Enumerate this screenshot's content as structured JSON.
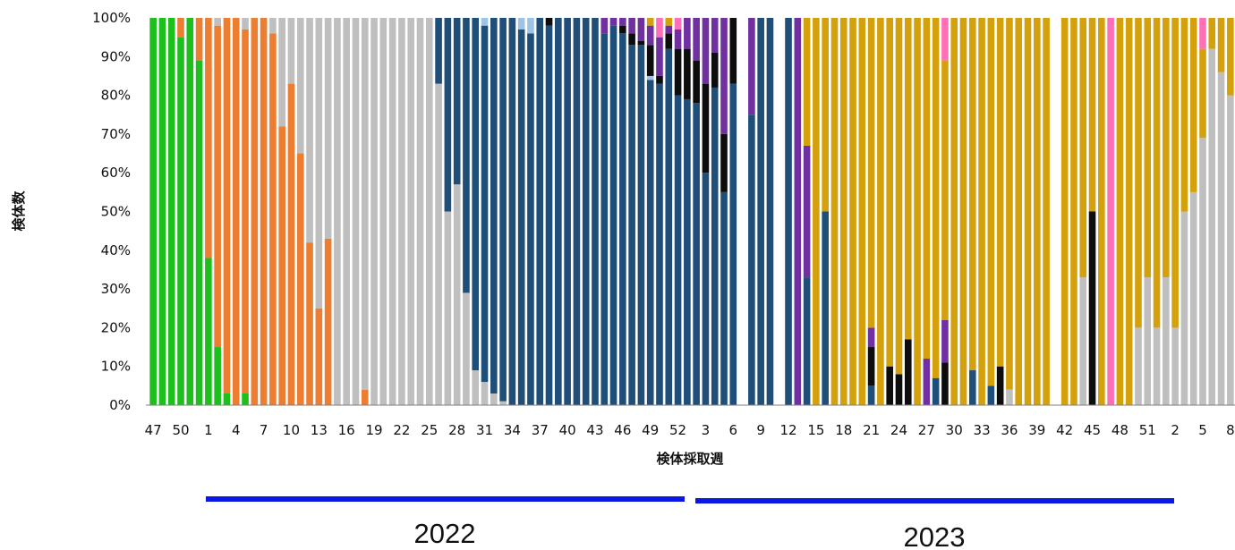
{
  "chart_data": {
    "type": "bar",
    "stacked": true,
    "normalized_percent": true,
    "xlabel": "検体採取週",
    "ylabel": "検体数",
    "ylim": [
      0,
      100
    ],
    "y_ticks": [
      "0%",
      "10%",
      "20%",
      "30%",
      "40%",
      "50%",
      "60%",
      "70%",
      "80%",
      "90%",
      "100%"
    ],
    "grid": false,
    "legend": "none",
    "x_tick_labels": [
      "47",
      "50",
      "1",
      "4",
      "7",
      "10",
      "13",
      "16",
      "19",
      "22",
      "25",
      "28",
      "31",
      "34",
      "37",
      "40",
      "43",
      "46",
      "49",
      "52",
      "3",
      "6",
      "9",
      "12",
      "15",
      "18",
      "21",
      "24",
      "27",
      "30",
      "33",
      "36",
      "39",
      "42",
      "45",
      "48",
      "51",
      "2",
      "5",
      "8"
    ],
    "year_labels": [
      "2022",
      "2023"
    ],
    "colors": {
      "green": "#1dbf1d",
      "orange": "#ed7d31",
      "gray": "#bfbfbf",
      "navy": "#1f4e79",
      "lightblue": "#9dc3e6",
      "black": "#0d0d0d",
      "purple": "#7030a0",
      "gold": "#d4a00b",
      "pink": "#ff6fb7",
      "year_bar": "#0a18e6"
    },
    "stack_order": [
      "green",
      "orange",
      "gray",
      "navy",
      "lightblue",
      "black",
      "purple",
      "gold",
      "pink"
    ],
    "bars": [
      {
        "gray": 0,
        "green": 100
      },
      {
        "green": 100
      },
      {
        "green": 100
      },
      {
        "green": 95,
        "orange": 5
      },
      {
        "green": 100
      },
      {
        "green": 89,
        "orange": 11
      },
      {
        "green": 38,
        "orange": 62
      },
      {
        "green": 15,
        "orange": 83,
        "gray": 2
      },
      {
        "green": 3,
        "orange": 97
      },
      {
        "orange": 100
      },
      {
        "green": 3,
        "orange": 94,
        "gray": 3
      },
      {
        "orange": 100
      },
      {
        "orange": 100
      },
      {
        "orange": 96,
        "gray": 4
      },
      {
        "orange": 72,
        "gray": 28
      },
      {
        "orange": 83,
        "gray": 17
      },
      {
        "orange": 65,
        "gray": 35
      },
      {
        "orange": 42,
        "gray": 58
      },
      {
        "orange": 25,
        "gray": 75
      },
      {
        "orange": 43,
        "gray": 57
      },
      {
        "gray": 100
      },
      {
        "gray": 100
      },
      {
        "gray": 100
      },
      {
        "orange": 4,
        "gray": 96
      },
      {
        "gray": 100
      },
      {
        "gray": 100
      },
      {
        "gray": 100
      },
      {
        "gray": 100
      },
      {
        "gray": 100
      },
      {
        "gray": 100
      },
      {
        "gray": 100
      },
      {
        "gray": 83,
        "navy": 17
      },
      {
        "gray": 50,
        "navy": 50
      },
      {
        "gray": 57,
        "navy": 43
      },
      {
        "gray": 29,
        "navy": 71
      },
      {
        "gray": 9,
        "navy": 91
      },
      {
        "gray": 6,
        "navy": 92,
        "lightblue": 2
      },
      {
        "gray": 3,
        "navy": 97
      },
      {
        "gray": 1,
        "navy": 99
      },
      {
        "navy": 100
      },
      {
        "navy": 97,
        "lightblue": 3
      },
      {
        "navy": 96,
        "lightblue": 4
      },
      {
        "navy": 100
      },
      {
        "navy": 98,
        "black": 2
      },
      {
        "navy": 100
      },
      {
        "navy": 100
      },
      {
        "navy": 100
      },
      {
        "navy": 100
      },
      {
        "navy": 100
      },
      {
        "navy": 96,
        "purple": 4
      },
      {
        "navy": 98,
        "purple": 2
      },
      {
        "navy": 96,
        "black": 2,
        "purple": 2
      },
      {
        "navy": 93,
        "black": 3,
        "purple": 4
      },
      {
        "navy": 93,
        "black": 1,
        "purple": 6
      },
      {
        "navy": 84,
        "lightblue": 1,
        "black": 8,
        "purple": 5,
        "gold": 2
      },
      {
        "navy": 83,
        "black": 2,
        "purple": 10,
        "pink": 5
      },
      {
        "navy": 92,
        "black": 4,
        "purple": 2,
        "gold": 2
      },
      {
        "navy": 80,
        "black": 12,
        "purple": 5,
        "pink": 3
      },
      {
        "navy": 79,
        "black": 13,
        "purple": 8
      },
      {
        "navy": 78,
        "black": 11,
        "purple": 11
      },
      {
        "navy": 60,
        "black": 23,
        "purple": 17
      },
      {
        "navy": 82,
        "black": 9,
        "purple": 9
      },
      {
        "navy": 55,
        "black": 15,
        "purple": 30
      },
      {
        "navy": 83,
        "black": 17
      },
      {},
      {
        "navy": 75,
        "purple": 25
      },
      {
        "navy": 100
      },
      {
        "navy": 100
      },
      {},
      {
        "navy": 100
      },
      {
        "purple": 100
      },
      {
        "navy": 33,
        "purple": 34,
        "gold": 33
      },
      {
        "gold": 100
      },
      {
        "navy": 50,
        "gold": 50
      },
      {
        "gold": 100
      },
      {
        "gold": 100
      },
      {
        "gold": 100
      },
      {
        "gold": 100
      },
      {
        "navy": 5,
        "black": 10,
        "purple": 5,
        "gold": 80
      },
      {
        "gold": 100
      },
      {
        "black": 10,
        "gold": 90
      },
      {
        "black": 8,
        "gold": 92
      },
      {
        "black": 17,
        "gold": 83
      },
      {
        "gold": 100
      },
      {
        "purple": 12,
        "gold": 88
      },
      {
        "navy": 7,
        "gold": 93
      },
      {
        "black": 11,
        "purple": 11,
        "gold": 67,
        "pink": 11
      },
      {
        "gold": 100
      },
      {
        "gold": 100
      },
      {
        "navy": 9,
        "gold": 91
      },
      {
        "gold": 100
      },
      {
        "navy": 5,
        "gold": 95
      },
      {
        "black": 10,
        "gold": 90
      },
      {
        "gray": 4,
        "gold": 96
      },
      {
        "gold": 100
      },
      {
        "gold": 100
      },
      {
        "gold": 100
      },
      {
        "gold": 100
      },
      {},
      {
        "gold": 100
      },
      {
        "gold": 100
      },
      {
        "gray": 33,
        "gold": 67
      },
      {
        "black": 50,
        "gold": 50
      },
      {
        "gold": 100
      },
      {
        "pink": 100
      },
      {
        "gold": 100
      },
      {
        "gold": 100
      },
      {
        "gray": 20,
        "gold": 80
      },
      {
        "gray": 33,
        "gold": 67
      },
      {
        "gray": 20,
        "gold": 80
      },
      {
        "gray": 33,
        "gold": 67
      },
      {
        "gray": 20,
        "gold": 80
      },
      {
        "gray": 50,
        "gold": 50
      },
      {
        "gray": 55,
        "gold": 45
      },
      {
        "gray": 69,
        "gold": 23,
        "pink": 8
      },
      {
        "gray": 92,
        "gold": 8
      },
      {
        "gray": 86,
        "gold": 14
      },
      {
        "gray": 80,
        "gold": 20
      }
    ]
  }
}
